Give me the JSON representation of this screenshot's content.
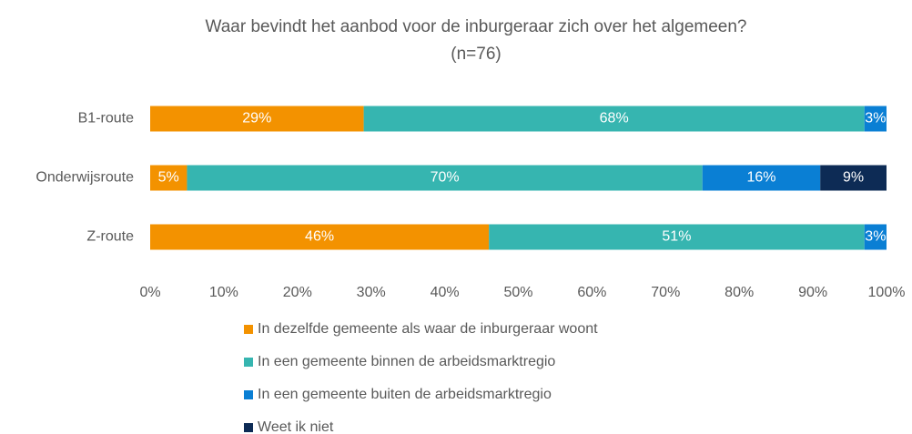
{
  "chart_data": {
    "type": "stacked-barh",
    "title": "Waar bevindt het aanbod voor de inburgeraar zich over het algemeen?",
    "subtitle": "(n=76)",
    "categories": [
      "B1-route",
      "Onderwijsroute",
      "Z-route"
    ],
    "series": [
      {
        "name": "In dezelfde gemeente als waar de inburgeraar woont",
        "color": "#f39200",
        "values": [
          29,
          5,
          46
        ],
        "value_labels": [
          "29%",
          "5%",
          "46%"
        ]
      },
      {
        "name": "In een gemeente binnen de arbeidsmarktregio",
        "color": "#36b5b0",
        "values": [
          68,
          70,
          51
        ],
        "value_labels": [
          "68%",
          "70%",
          "51%"
        ]
      },
      {
        "name": "In een gemeente buiten de arbeidsmarktregio",
        "color": "#0a7fd4",
        "values": [
          3,
          16,
          3
        ],
        "value_labels": [
          "3%",
          "16%",
          "3%"
        ]
      },
      {
        "name": "Weet ik niet",
        "color": "#0d2b55",
        "values": [
          null,
          9,
          null
        ],
        "value_labels": [
          null,
          "9%",
          null
        ]
      }
    ],
    "xlim": [
      0,
      100
    ],
    "xticks": [
      {
        "value": 0,
        "label": "0%"
      },
      {
        "value": 10,
        "label": "10%"
      },
      {
        "value": 20,
        "label": "20%"
      },
      {
        "value": 30,
        "label": "30%"
      },
      {
        "value": 40,
        "label": "40%"
      },
      {
        "value": 50,
        "label": "50%"
      },
      {
        "value": 60,
        "label": "60%"
      },
      {
        "value": 70,
        "label": "70%"
      },
      {
        "value": 80,
        "label": "80%"
      },
      {
        "value": 90,
        "label": "90%"
      },
      {
        "value": 100,
        "label": "100%"
      }
    ]
  }
}
